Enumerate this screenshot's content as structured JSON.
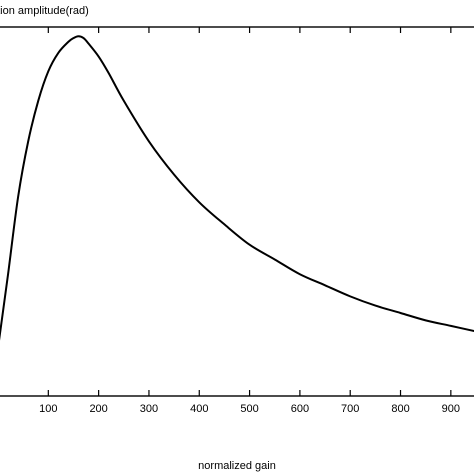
{
  "chart_data": {
    "type": "line",
    "ylabel": "ation amplitude(rad)",
    "xlabel": "normalized gain",
    "xlim": [
      0,
      950
    ],
    "ylim": [
      0,
      1
    ],
    "x_ticks": [
      100,
      200,
      300,
      400,
      500,
      600,
      700,
      800,
      900
    ],
    "grid": false,
    "line_color": "#000000",
    "series": [
      {
        "x": [
          0,
          5,
          20,
          40,
          60,
          80,
          100,
          120,
          140,
          150,
          160,
          170,
          180,
          200,
          220,
          250,
          300,
          350,
          400,
          450,
          500,
          550,
          600,
          650,
          700,
          750,
          800,
          850,
          900,
          950
        ],
        "y": [
          0.13,
          0.18,
          0.33,
          0.54,
          0.69,
          0.8,
          0.88,
          0.93,
          0.96,
          0.97,
          0.975,
          0.97,
          0.955,
          0.92,
          0.875,
          0.8,
          0.69,
          0.6,
          0.525,
          0.465,
          0.41,
          0.37,
          0.33,
          0.3,
          0.27,
          0.245,
          0.225,
          0.205,
          0.19,
          0.175
        ]
      }
    ]
  }
}
